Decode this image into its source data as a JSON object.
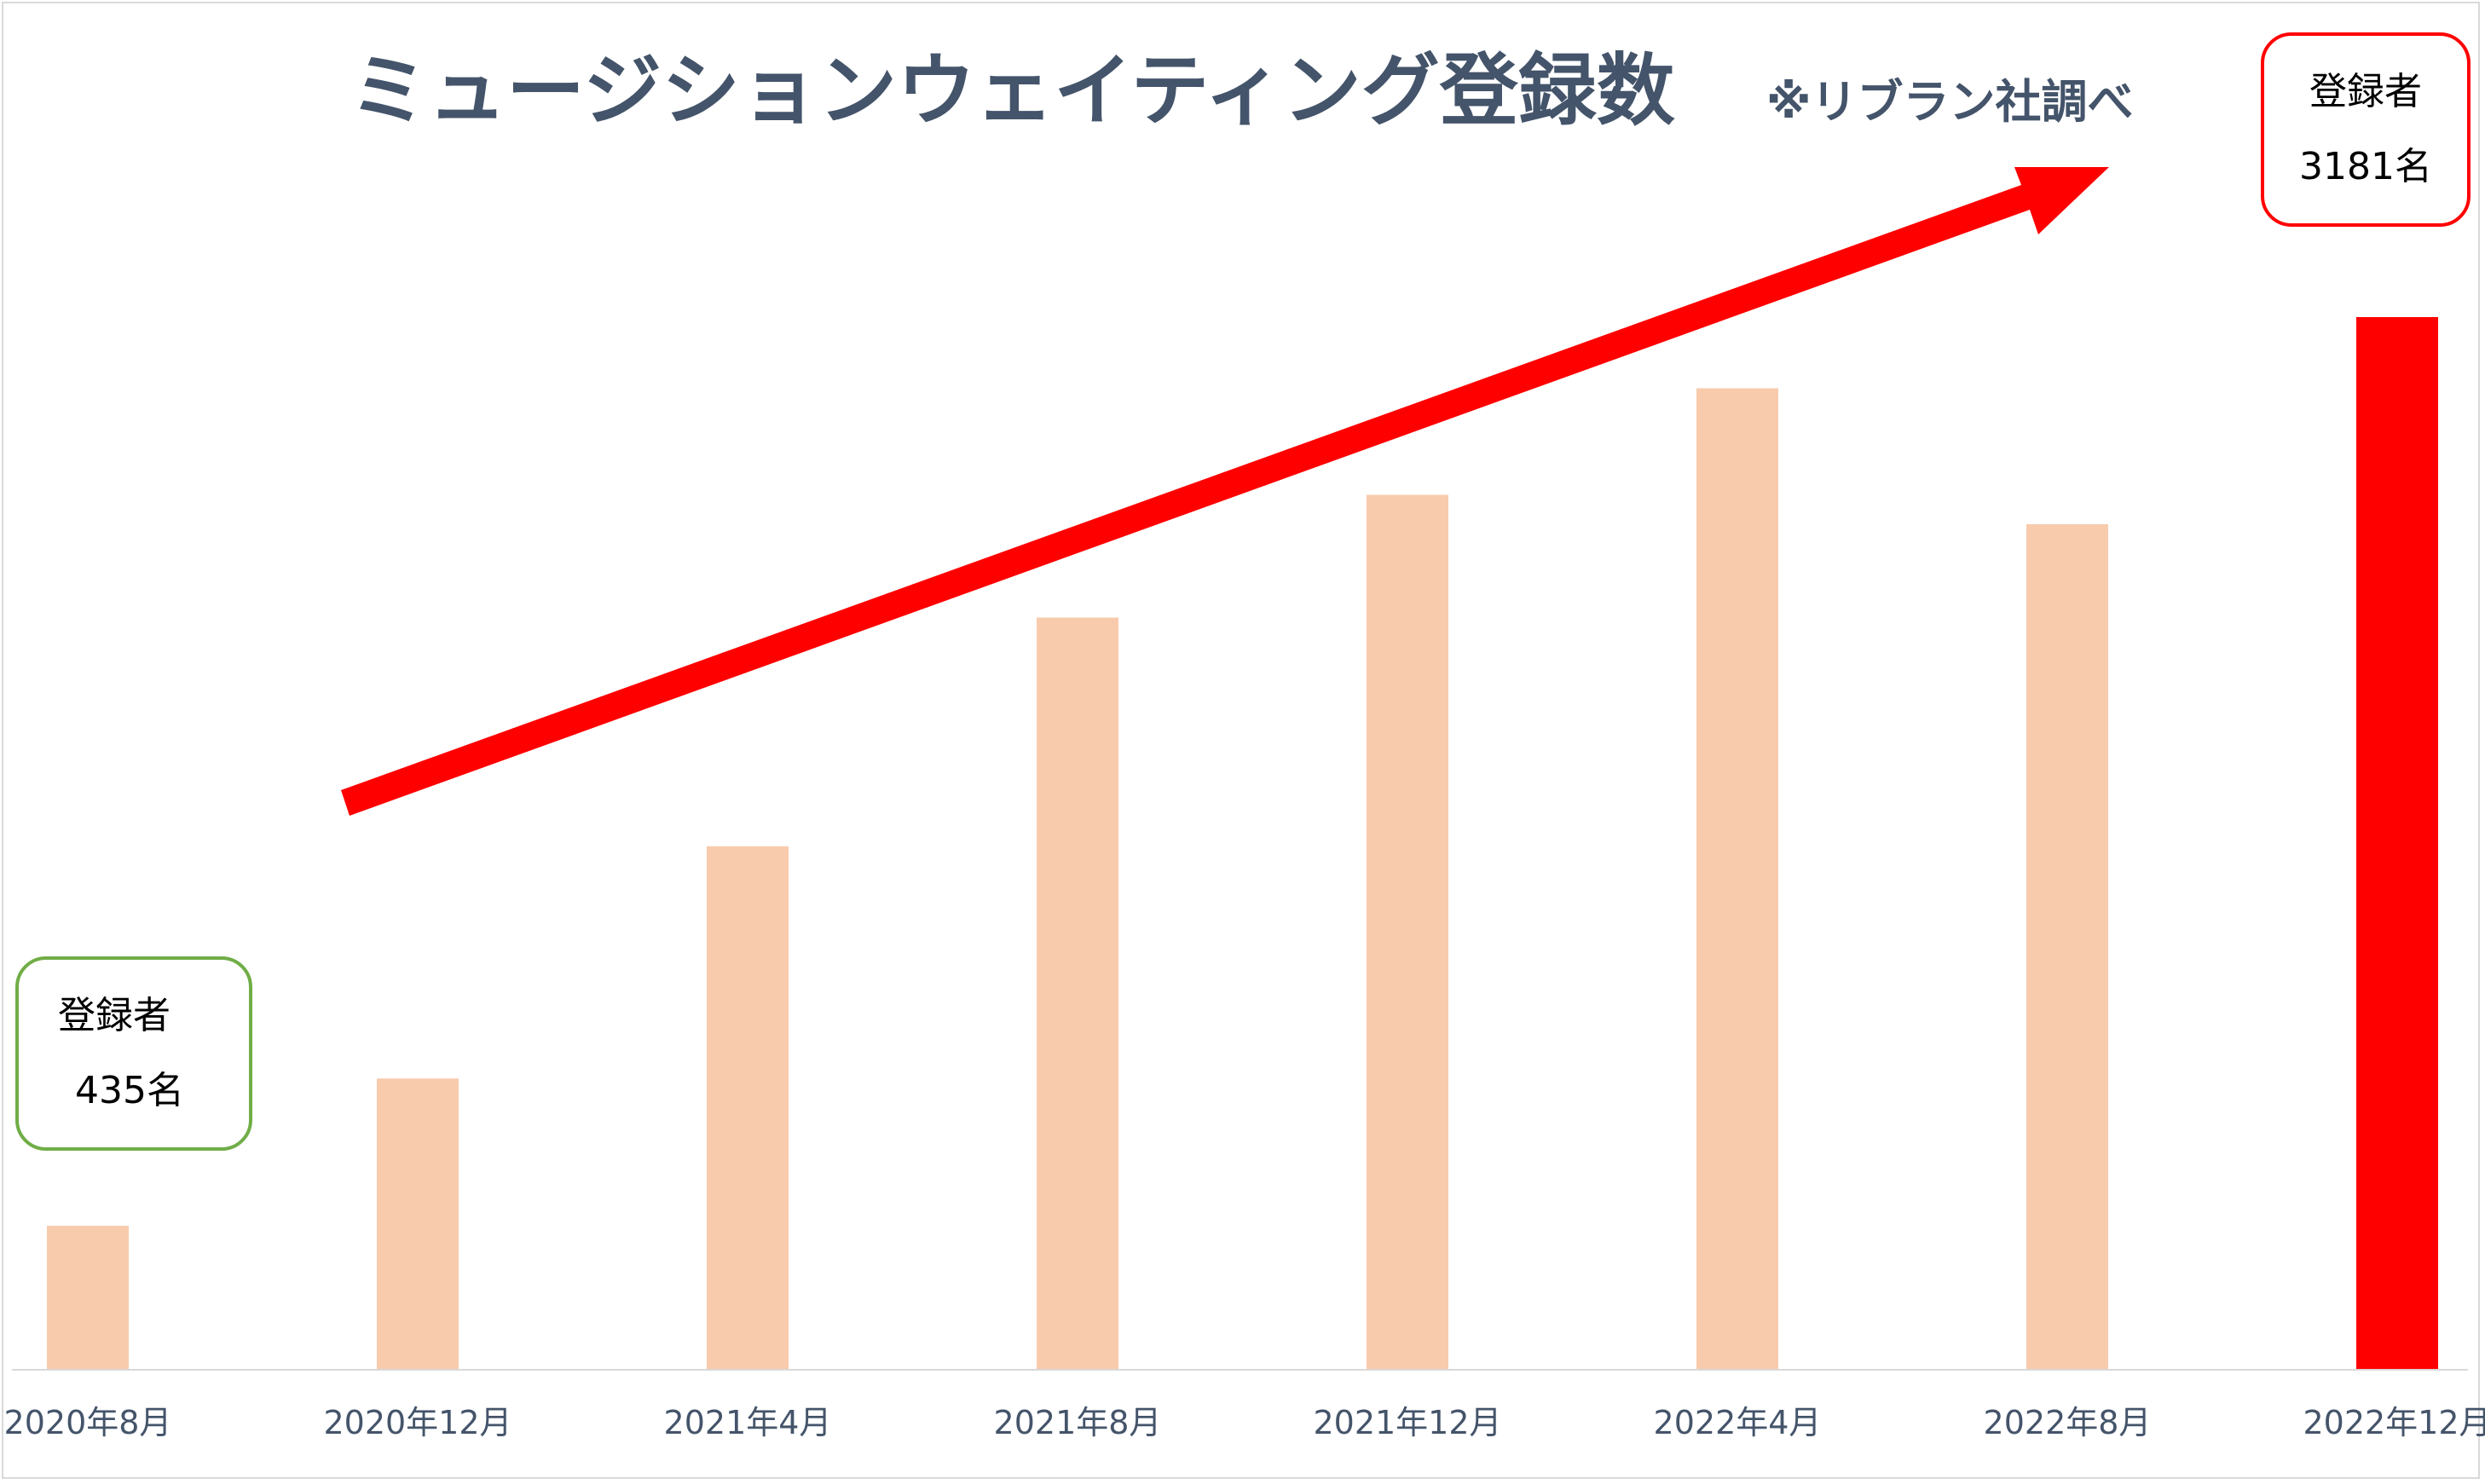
{
  "chart_data": {
    "type": "bar",
    "title": "ミュージションウェイティング登録数",
    "source_note": "※リブラン社調べ",
    "categories": [
      "2020年8月",
      "2020年12月",
      "2021年4月",
      "2021年8月",
      "2021年12月",
      "2022年4月",
      "2022年8月",
      "2022年12月"
    ],
    "values": [
      435,
      880,
      1582,
      2273,
      2644,
      2966,
      2555,
      3181
    ],
    "ylim": [
      0,
      3181
    ],
    "grid": false,
    "legend": "none",
    "colors": {
      "bar": "#f8cbad",
      "highlight_bar": "#ff0000",
      "arrow": "#ff0000",
      "text": "#44546a",
      "axis": "#d9d9d9"
    },
    "annotations": {
      "first": {
        "label": "登録者",
        "value": "435名",
        "border_color": "#70ad47"
      },
      "last": {
        "label": "登録者",
        "value": "3181名",
        "border_color": "#ff0000"
      }
    },
    "trend_arrow": "increasing"
  }
}
